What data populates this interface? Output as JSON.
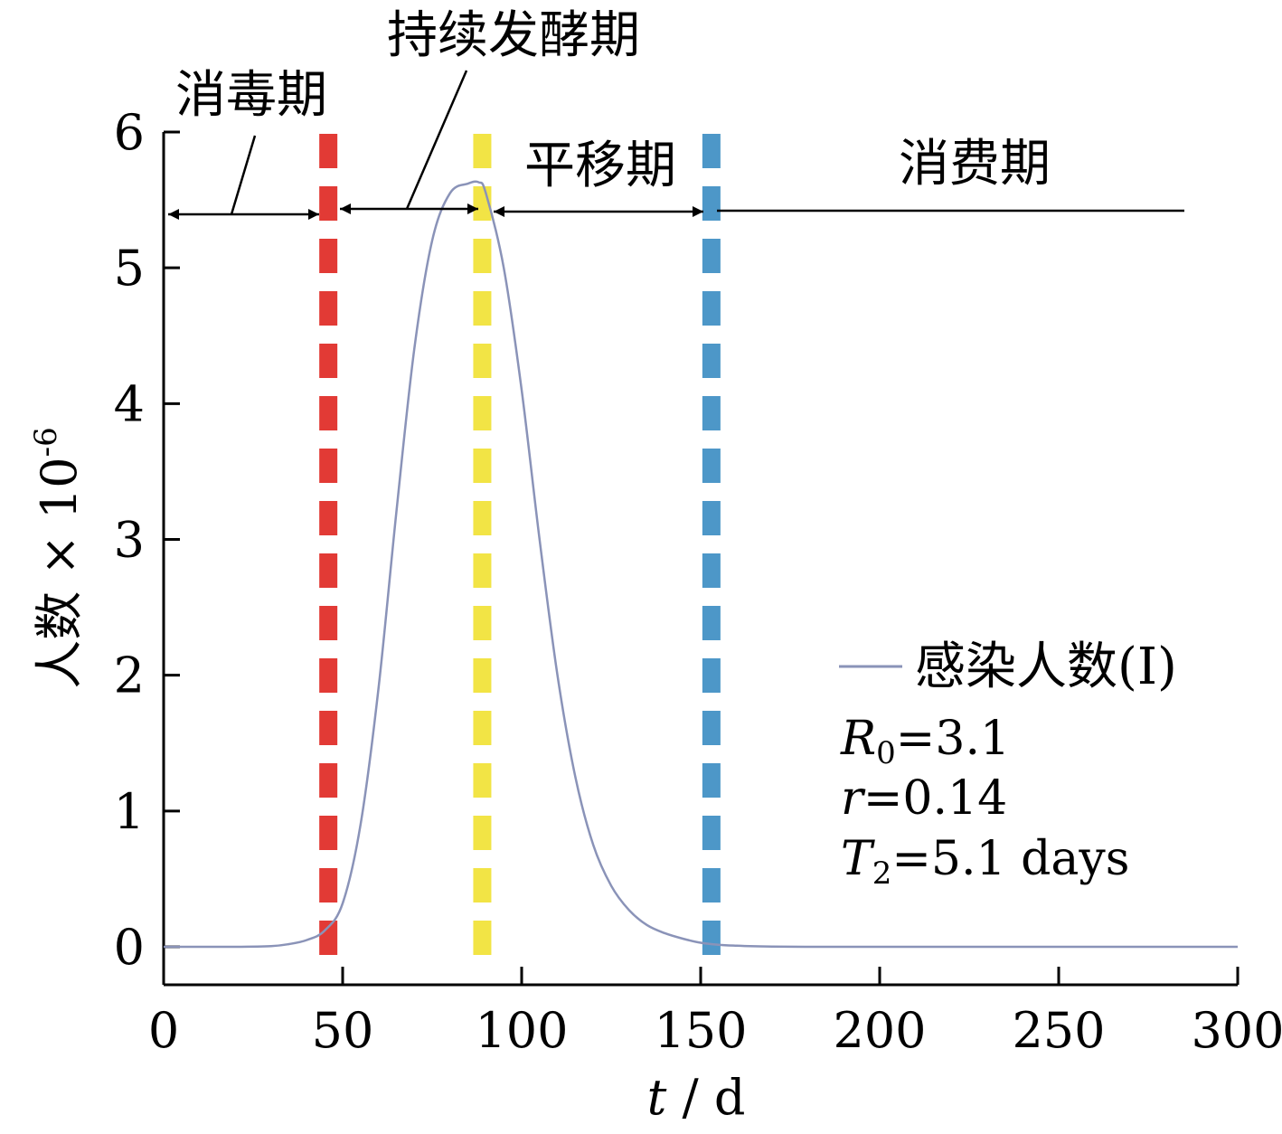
{
  "chart_data": {
    "type": "line",
    "xlabel": {
      "var": "t",
      "unit": "/ d"
    },
    "ylabel": {
      "base": "人数 × 10",
      "exponent": "-6"
    },
    "xlim": [
      0,
      300
    ],
    "ylim": [
      0,
      6
    ],
    "x_ticks": [
      "0",
      "50",
      "100",
      "150",
      "200",
      "250",
      "300"
    ],
    "y_ticks": [
      "0",
      "1",
      "2",
      "3",
      "4",
      "5",
      "6"
    ],
    "grid": false,
    "series": [
      {
        "name": "感染人数(I)",
        "color": "#8a93b8",
        "x": [
          0,
          20,
          30,
          35,
          40,
          45,
          50,
          55,
          60,
          65,
          70,
          75,
          80,
          85,
          88,
          90,
          95,
          100,
          105,
          110,
          115,
          120,
          125,
          130,
          135,
          140,
          145,
          150,
          155,
          160,
          165,
          170,
          180,
          200,
          250,
          300
        ],
        "y": [
          0,
          0,
          0.005,
          0.02,
          0.05,
          0.12,
          0.32,
          0.9,
          1.9,
          3.2,
          4.4,
          5.2,
          5.55,
          5.62,
          5.63,
          5.55,
          5.0,
          4.1,
          3.0,
          2.0,
          1.25,
          0.75,
          0.45,
          0.27,
          0.16,
          0.1,
          0.06,
          0.03,
          0.015,
          0.008,
          0.004,
          0.002,
          0,
          0,
          0,
          0
        ]
      }
    ],
    "vertical_lines": [
      {
        "x": 46,
        "color": "#e23a35"
      },
      {
        "x": 89,
        "color": "#f2e445"
      },
      {
        "x": 153,
        "color": "#4d97c8"
      }
    ],
    "phases": {
      "label_1": "消毒期",
      "label_2": "持续发酵期",
      "label_3": "平移期",
      "label_4": "消费期"
    },
    "annotation": {
      "r0": {
        "var": "R",
        "sub": "0",
        "value": "=3.1"
      },
      "r": {
        "var": "r",
        "value": "=0.14"
      },
      "t2": {
        "var": "T",
        "sub": "2",
        "value": "=5.1 days"
      }
    },
    "legend_position": "right"
  }
}
